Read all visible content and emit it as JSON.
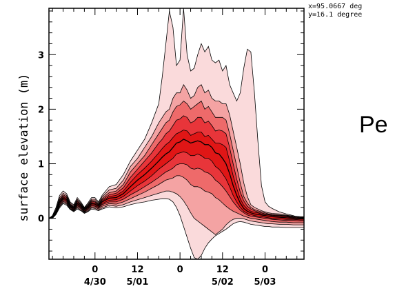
{
  "coords": {
    "x_text": "x=95.0667 deg",
    "y_text": "y=16.1 degree"
  },
  "side_text": "Pe",
  "colors": {
    "band_outer": "#fadadb",
    "band_2": "#f4a3a3",
    "band_3": "#ee6a6a",
    "band_4": "#e8353a",
    "band_5": "#e01616",
    "line": "#000000"
  },
  "chart_data": {
    "type": "area",
    "title": "",
    "xlabel": "",
    "ylabel": "surface elevation (m)",
    "ylim": [
      -0.75,
      3.85
    ],
    "yticks": [
      0,
      1,
      2,
      3
    ],
    "xticks": [
      {
        "h": 48,
        "label": "0",
        "date": "4/30"
      },
      {
        "h": 60,
        "label": "12",
        "date": "5/01"
      },
      {
        "h": 72,
        "label": "0",
        "date": ""
      },
      {
        "h": 84,
        "label": "12",
        "date": "5/02"
      },
      {
        "h": 96,
        "label": "0",
        "date": "5/03"
      }
    ],
    "xrange_hours": [
      35,
      107
    ],
    "grid": false,
    "x": [
      35,
      36,
      37,
      38,
      39,
      40,
      41,
      42,
      43,
      44,
      45,
      46,
      47,
      48,
      49,
      50,
      52,
      54,
      56,
      58,
      60,
      62,
      64,
      66,
      67,
      68,
      69,
      70,
      71,
      72,
      73,
      74,
      75,
      76,
      77,
      78,
      79,
      80,
      81,
      82,
      83,
      84,
      85,
      86,
      87,
      88,
      89,
      90,
      91,
      92,
      93,
      94,
      95,
      96,
      97,
      98,
      100,
      102,
      104,
      106,
      107
    ],
    "series": [
      {
        "role": "outer_upper",
        "values": [
          0.0,
          0.05,
          0.2,
          0.42,
          0.5,
          0.45,
          0.3,
          0.25,
          0.38,
          0.3,
          0.2,
          0.28,
          0.38,
          0.38,
          0.3,
          0.42,
          0.58,
          0.62,
          0.8,
          1.05,
          1.25,
          1.45,
          1.75,
          2.1,
          2.6,
          3.2,
          3.8,
          3.5,
          2.8,
          2.9,
          3.85,
          3.0,
          2.7,
          2.75,
          3.0,
          3.2,
          3.05,
          3.15,
          2.9,
          2.85,
          2.9,
          2.7,
          2.8,
          2.45,
          2.3,
          2.15,
          2.3,
          2.75,
          3.1,
          3.05,
          2.3,
          1.4,
          0.6,
          0.3,
          0.22,
          0.18,
          0.12,
          0.08,
          0.05,
          0.0,
          0.0
        ]
      },
      {
        "role": "band2_upper",
        "values": [
          0.0,
          0.04,
          0.17,
          0.38,
          0.46,
          0.42,
          0.28,
          0.23,
          0.35,
          0.28,
          0.19,
          0.26,
          0.35,
          0.35,
          0.28,
          0.39,
          0.52,
          0.55,
          0.7,
          0.95,
          1.1,
          1.3,
          1.5,
          1.75,
          1.85,
          1.95,
          2.0,
          2.2,
          2.3,
          2.3,
          2.45,
          2.35,
          2.2,
          2.25,
          2.4,
          2.45,
          2.3,
          2.35,
          2.2,
          2.15,
          2.15,
          2.1,
          2.1,
          1.9,
          1.6,
          1.3,
          1.0,
          0.65,
          0.4,
          0.25,
          0.2,
          0.17,
          0.14,
          0.12,
          0.1,
          0.09,
          0.08,
          0.06,
          0.04,
          0.03,
          0.03
        ]
      },
      {
        "role": "band3_upper",
        "values": [
          0.0,
          0.03,
          0.15,
          0.35,
          0.43,
          0.4,
          0.26,
          0.21,
          0.33,
          0.26,
          0.18,
          0.24,
          0.33,
          0.32,
          0.26,
          0.36,
          0.47,
          0.5,
          0.62,
          0.85,
          1.0,
          1.15,
          1.35,
          1.55,
          1.65,
          1.75,
          1.8,
          1.95,
          2.05,
          2.08,
          2.15,
          2.1,
          2.0,
          2.05,
          2.1,
          2.15,
          2.0,
          2.05,
          1.95,
          1.85,
          1.85,
          1.85,
          1.8,
          1.55,
          1.25,
          0.95,
          0.65,
          0.4,
          0.28,
          0.2,
          0.16,
          0.14,
          0.12,
          0.1,
          0.08,
          0.07,
          0.06,
          0.05,
          0.03,
          0.02,
          0.02
        ]
      },
      {
        "role": "band4_upper",
        "values": [
          0.0,
          0.03,
          0.14,
          0.33,
          0.41,
          0.38,
          0.25,
          0.2,
          0.31,
          0.25,
          0.17,
          0.23,
          0.31,
          0.3,
          0.25,
          0.34,
          0.43,
          0.46,
          0.56,
          0.75,
          0.9,
          1.05,
          1.2,
          1.38,
          1.45,
          1.55,
          1.6,
          1.7,
          1.8,
          1.82,
          1.88,
          1.85,
          1.75,
          1.78,
          1.85,
          1.85,
          1.75,
          1.78,
          1.7,
          1.6,
          1.62,
          1.6,
          1.55,
          1.3,
          1.0,
          0.72,
          0.48,
          0.32,
          0.22,
          0.17,
          0.14,
          0.12,
          0.1,
          0.08,
          0.07,
          0.06,
          0.05,
          0.04,
          0.02,
          0.01,
          0.01
        ]
      },
      {
        "role": "band5_upper",
        "values": [
          0.0,
          0.02,
          0.13,
          0.31,
          0.39,
          0.36,
          0.24,
          0.19,
          0.29,
          0.24,
          0.16,
          0.22,
          0.29,
          0.28,
          0.24,
          0.32,
          0.4,
          0.42,
          0.5,
          0.66,
          0.8,
          0.92,
          1.05,
          1.2,
          1.28,
          1.35,
          1.4,
          1.48,
          1.55,
          1.58,
          1.62,
          1.6,
          1.52,
          1.55,
          1.58,
          1.58,
          1.5,
          1.52,
          1.45,
          1.38,
          1.38,
          1.35,
          1.3,
          1.05,
          0.78,
          0.55,
          0.36,
          0.24,
          0.17,
          0.13,
          0.11,
          0.1,
          0.08,
          0.07,
          0.06,
          0.05,
          0.04,
          0.03,
          0.01,
          0.0,
          0.0
        ]
      },
      {
        "role": "median",
        "values": [
          0.0,
          0.02,
          0.12,
          0.29,
          0.37,
          0.34,
          0.22,
          0.18,
          0.27,
          0.22,
          0.15,
          0.2,
          0.27,
          0.26,
          0.22,
          0.3,
          0.37,
          0.38,
          0.45,
          0.58,
          0.7,
          0.8,
          0.92,
          1.05,
          1.12,
          1.18,
          1.22,
          1.3,
          1.38,
          1.4,
          1.45,
          1.42,
          1.38,
          1.4,
          1.42,
          1.4,
          1.35,
          1.35,
          1.3,
          1.2,
          1.18,
          1.1,
          1.0,
          0.82,
          0.6,
          0.42,
          0.28,
          0.18,
          0.13,
          0.1,
          0.08,
          0.07,
          0.06,
          0.05,
          0.04,
          0.03,
          0.02,
          0.01,
          0.0,
          -0.01,
          -0.01
        ]
      },
      {
        "role": "band5_lower",
        "values": [
          0.0,
          0.01,
          0.11,
          0.27,
          0.35,
          0.32,
          0.21,
          0.16,
          0.25,
          0.2,
          0.13,
          0.18,
          0.25,
          0.24,
          0.2,
          0.27,
          0.33,
          0.34,
          0.4,
          0.5,
          0.6,
          0.68,
          0.78,
          0.9,
          0.95,
          1.0,
          1.05,
          1.1,
          1.18,
          1.2,
          1.22,
          1.2,
          1.15,
          1.15,
          1.18,
          1.15,
          1.1,
          1.1,
          1.05,
          0.95,
          0.9,
          0.82,
          0.72,
          0.58,
          0.42,
          0.3,
          0.2,
          0.13,
          0.09,
          0.07,
          0.05,
          0.04,
          0.03,
          0.02,
          0.01,
          0.0,
          -0.01,
          -0.02,
          -0.02,
          -0.03,
          -0.03
        ]
      },
      {
        "role": "band4_lower",
        "values": [
          0.0,
          0.01,
          0.1,
          0.25,
          0.33,
          0.3,
          0.2,
          0.15,
          0.23,
          0.19,
          0.12,
          0.17,
          0.23,
          0.22,
          0.19,
          0.25,
          0.3,
          0.3,
          0.35,
          0.43,
          0.5,
          0.58,
          0.66,
          0.75,
          0.8,
          0.85,
          0.88,
          0.92,
          0.98,
          1.0,
          1.0,
          0.98,
          0.92,
          0.9,
          0.92,
          0.9,
          0.85,
          0.83,
          0.78,
          0.7,
          0.65,
          0.58,
          0.5,
          0.4,
          0.3,
          0.22,
          0.15,
          0.1,
          0.06,
          0.04,
          0.03,
          0.02,
          0.01,
          0.0,
          -0.01,
          -0.02,
          -0.03,
          -0.04,
          -0.04,
          -0.05,
          -0.05
        ]
      },
      {
        "role": "band3_lower",
        "values": [
          0.0,
          0.0,
          0.09,
          0.23,
          0.31,
          0.28,
          0.18,
          0.14,
          0.21,
          0.17,
          0.11,
          0.15,
          0.21,
          0.2,
          0.17,
          0.22,
          0.27,
          0.26,
          0.3,
          0.36,
          0.42,
          0.48,
          0.55,
          0.62,
          0.66,
          0.7,
          0.72,
          0.74,
          0.78,
          0.78,
          0.75,
          0.7,
          0.62,
          0.58,
          0.58,
          0.55,
          0.5,
          0.48,
          0.45,
          0.38,
          0.34,
          0.28,
          0.22,
          0.17,
          0.13,
          0.1,
          0.07,
          0.04,
          0.02,
          0.0,
          -0.01,
          -0.02,
          -0.03,
          -0.04,
          -0.05,
          -0.06,
          -0.07,
          -0.07,
          -0.08,
          -0.08,
          -0.08
        ]
      },
      {
        "role": "band2_lower",
        "values": [
          0.0,
          0.0,
          0.08,
          0.21,
          0.29,
          0.26,
          0.17,
          0.13,
          0.19,
          0.15,
          0.1,
          0.13,
          0.19,
          0.18,
          0.15,
          0.19,
          0.24,
          0.22,
          0.25,
          0.3,
          0.34,
          0.38,
          0.42,
          0.46,
          0.48,
          0.5,
          0.5,
          0.48,
          0.45,
          0.4,
          0.32,
          0.22,
          0.1,
          0.0,
          -0.05,
          -0.1,
          -0.15,
          -0.2,
          -0.25,
          -0.3,
          -0.25,
          -0.2,
          -0.12,
          -0.06,
          -0.02,
          0.0,
          0.0,
          -0.01,
          -0.03,
          -0.05,
          -0.06,
          -0.07,
          -0.08,
          -0.09,
          -0.1,
          -0.1,
          -0.11,
          -0.11,
          -0.12,
          -0.12,
          -0.12
        ]
      },
      {
        "role": "outer_lower",
        "values": [
          0.0,
          0.0,
          0.07,
          0.19,
          0.27,
          0.24,
          0.16,
          0.12,
          0.17,
          0.14,
          0.09,
          0.12,
          0.17,
          0.16,
          0.14,
          0.17,
          0.21,
          0.19,
          0.21,
          0.25,
          0.28,
          0.3,
          0.33,
          0.35,
          0.36,
          0.36,
          0.35,
          0.3,
          0.2,
          0.05,
          -0.15,
          -0.35,
          -0.55,
          -0.72,
          -0.75,
          -0.68,
          -0.55,
          -0.45,
          -0.38,
          -0.32,
          -0.28,
          -0.24,
          -0.2,
          -0.15,
          -0.1,
          -0.07,
          -0.06,
          -0.07,
          -0.09,
          -0.11,
          -0.12,
          -0.13,
          -0.14,
          -0.15,
          -0.15,
          -0.16,
          -0.16,
          -0.17,
          -0.17,
          -0.17,
          -0.17
        ]
      }
    ]
  }
}
